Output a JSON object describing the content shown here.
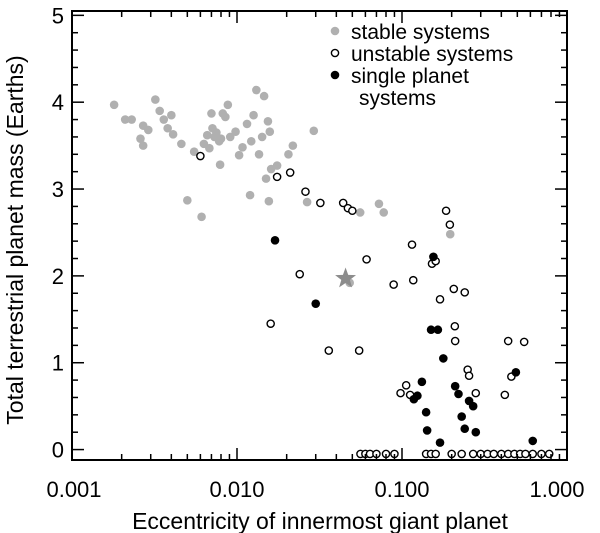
{
  "chart_data": {
    "type": "scatter",
    "title": "",
    "xlabel": "Eccentricity of innermost giant planet",
    "ylabel": "Total terrestrial planet mass (Earths)",
    "xscale": "log",
    "xlim": [
      0.001,
      1.0
    ],
    "ylim": [
      -0.12,
      5.05
    ],
    "x_ticks": [
      0.001,
      0.01,
      0.1,
      1.0
    ],
    "x_tick_labels": [
      "0.001",
      "0.010",
      "0.100",
      "1.000"
    ],
    "y_ticks": [
      0,
      1,
      2,
      3,
      4,
      5
    ],
    "y_tick_labels": [
      "0",
      "1",
      "2",
      "3",
      "4",
      "5"
    ],
    "grid": false,
    "legend_position": "top-right",
    "colors": {
      "stable": "#b0b0b0",
      "unstable": "#000000",
      "single": "#000000",
      "star": "#8c8c8c"
    },
    "series": [
      {
        "name": "stable systems",
        "marker": "filled-gray-circle",
        "points": [
          [
            0.0018,
            3.97
          ],
          [
            0.0021,
            3.8
          ],
          [
            0.0023,
            3.8
          ],
          [
            0.0026,
            3.58
          ],
          [
            0.0027,
            3.5
          ],
          [
            0.0027,
            3.73
          ],
          [
            0.0029,
            3.68
          ],
          [
            0.0032,
            4.03
          ],
          [
            0.0034,
            3.9
          ],
          [
            0.0036,
            3.8
          ],
          [
            0.0038,
            3.7
          ],
          [
            0.004,
            3.85
          ],
          [
            0.0041,
            3.63
          ],
          [
            0.0046,
            3.52
          ],
          [
            0.005,
            2.87
          ],
          [
            0.0055,
            3.43
          ],
          [
            0.0061,
            2.68
          ],
          [
            0.0063,
            3.52
          ],
          [
            0.0066,
            3.62
          ],
          [
            0.0068,
            3.47
          ],
          [
            0.007,
            3.87
          ],
          [
            0.0071,
            3.7
          ],
          [
            0.0073,
            3.6
          ],
          [
            0.0075,
            3.65
          ],
          [
            0.0078,
            3.55
          ],
          [
            0.008,
            3.58
          ],
          [
            0.0082,
            3.87
          ],
          [
            0.0085,
            3.83
          ],
          [
            0.0088,
            3.97
          ],
          [
            0.0079,
            3.28
          ],
          [
            0.0091,
            3.6
          ],
          [
            0.0098,
            3.66
          ],
          [
            0.0103,
            3.39
          ],
          [
            0.0108,
            3.48
          ],
          [
            0.0115,
            3.75
          ],
          [
            0.0122,
            3.55
          ],
          [
            0.012,
            2.93
          ],
          [
            0.0126,
            3.85
          ],
          [
            0.0131,
            4.14
          ],
          [
            0.0136,
            3.4
          ],
          [
            0.0142,
            3.6
          ],
          [
            0.0146,
            4.07
          ],
          [
            0.015,
            3.12
          ],
          [
            0.0154,
            3.78
          ],
          [
            0.0156,
            2.86
          ],
          [
            0.0158,
            3.66
          ],
          [
            0.0161,
            3.23
          ],
          [
            0.0175,
            3.27
          ],
          [
            0.0205,
            3.4
          ],
          [
            0.0218,
            3.5
          ],
          [
            0.0266,
            2.85
          ],
          [
            0.0292,
            3.67
          ],
          [
            0.0482,
            1.92
          ],
          [
            0.0558,
            2.73
          ],
          [
            0.0725,
            2.83
          ],
          [
            0.0775,
            2.73
          ],
          [
            0.196,
            2.48
          ]
        ]
      },
      {
        "name": "unstable systems",
        "marker": "open-circle",
        "points": [
          [
            0.006,
            3.38
          ],
          [
            0.016,
            1.45
          ],
          [
            0.0175,
            3.14
          ],
          [
            0.021,
            3.19
          ],
          [
            0.024,
            2.02
          ],
          [
            0.026,
            2.97
          ],
          [
            0.032,
            2.84
          ],
          [
            0.036,
            1.14
          ],
          [
            0.044,
            2.84
          ],
          [
            0.047,
            2.78
          ],
          [
            0.05,
            2.75
          ],
          [
            0.055,
            1.14
          ],
          [
            0.061,
            2.19
          ],
          [
            0.089,
            1.9
          ],
          [
            0.098,
            0.65
          ],
          [
            0.106,
            0.74
          ],
          [
            0.112,
            0.63
          ],
          [
            0.115,
            2.36
          ],
          [
            0.117,
            1.95
          ],
          [
            0.152,
            2.14
          ],
          [
            0.16,
            2.17
          ],
          [
            0.17,
            1.73
          ],
          [
            0.185,
            2.75
          ],
          [
            0.195,
            2.59
          ],
          [
            0.206,
            1.85
          ],
          [
            0.209,
            1.42
          ],
          [
            0.21,
            1.25
          ],
          [
            0.24,
            1.81
          ],
          [
            0.25,
            0.92
          ],
          [
            0.255,
            0.85
          ],
          [
            0.28,
            0.65
          ],
          [
            0.42,
            0.63
          ],
          [
            0.44,
            1.25
          ],
          [
            0.46,
            0.84
          ],
          [
            0.55,
            1.24
          ],
          [
            0.056,
            -0.05
          ],
          [
            0.06,
            -0.05
          ],
          [
            0.064,
            -0.05
          ],
          [
            0.07,
            -0.05
          ],
          [
            0.08,
            -0.05
          ],
          [
            0.09,
            -0.05
          ],
          [
            0.14,
            -0.05
          ],
          [
            0.15,
            -0.05
          ],
          [
            0.16,
            -0.05
          ],
          [
            0.2,
            -0.05
          ],
          [
            0.23,
            -0.05
          ],
          [
            0.27,
            -0.05
          ],
          [
            0.3,
            -0.05
          ],
          [
            0.33,
            -0.05
          ],
          [
            0.36,
            -0.05
          ],
          [
            0.4,
            -0.05
          ],
          [
            0.44,
            -0.05
          ],
          [
            0.48,
            -0.05
          ],
          [
            0.52,
            -0.05
          ],
          [
            0.56,
            -0.05
          ],
          [
            0.62,
            -0.05
          ],
          [
            0.7,
            -0.05
          ],
          [
            0.78,
            -0.05
          ]
        ]
      },
      {
        "name": "single planet systems",
        "marker": "filled-black-circle",
        "points": [
          [
            0.017,
            2.41
          ],
          [
            0.03,
            1.68
          ],
          [
            0.118,
            0.58
          ],
          [
            0.124,
            0.62
          ],
          [
            0.132,
            0.78
          ],
          [
            0.14,
            0.43
          ],
          [
            0.142,
            0.22
          ],
          [
            0.15,
            1.38
          ],
          [
            0.155,
            2.22
          ],
          [
            0.165,
            1.38
          ],
          [
            0.17,
            0.08
          ],
          [
            0.178,
            1.05
          ],
          [
            0.21,
            0.73
          ],
          [
            0.22,
            0.64
          ],
          [
            0.23,
            0.38
          ],
          [
            0.24,
            0.24
          ],
          [
            0.255,
            0.56
          ],
          [
            0.27,
            0.5
          ],
          [
            0.28,
            0.2
          ],
          [
            0.49,
            0.89
          ],
          [
            0.62,
            0.1
          ]
        ]
      }
    ],
    "highlight": {
      "marker": "gray-star",
      "x": 0.0455,
      "y": 1.97
    },
    "legend": [
      {
        "label": "stable systems",
        "marker": "filled-gray-circle"
      },
      {
        "label": "unstable systems",
        "marker": "open-circle"
      },
      {
        "label": "single planet",
        "marker": "filled-black-circle"
      },
      {
        "label": "systems",
        "marker": "none"
      }
    ]
  }
}
